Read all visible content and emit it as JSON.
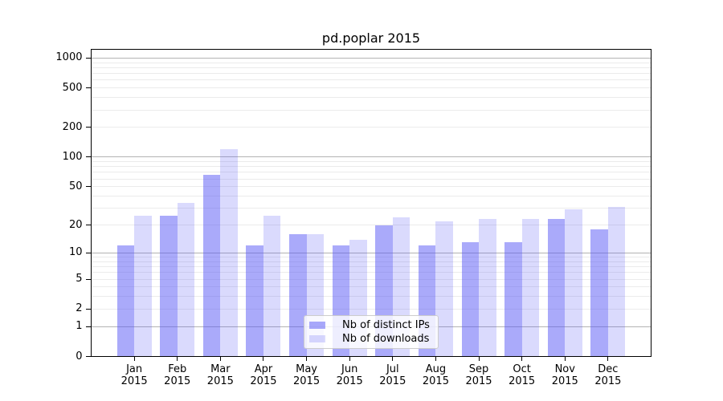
{
  "chart_data": {
    "type": "bar",
    "title": "pd.poplar 2015",
    "categories": [
      "Jan 2015",
      "Feb 2015",
      "Mar 2015",
      "Apr 2015",
      "May 2015",
      "Jun 2015",
      "Jul 2015",
      "Aug 2015",
      "Sep 2015",
      "Oct 2015",
      "Nov 2015",
      "Dec 2015"
    ],
    "series": [
      {
        "key": "distinct-ips",
        "name": "Nb of distinct IPs",
        "color": "#5555f5",
        "alpha": 0.5,
        "values": [
          12,
          25,
          66,
          12,
          16,
          12,
          20,
          12,
          13,
          13,
          23,
          18
        ]
      },
      {
        "key": "downloads",
        "name": "Nb of downloads",
        "color": "#5555f5",
        "alpha": 0.22,
        "values": [
          25,
          34,
          120,
          25,
          16,
          14,
          24,
          22,
          23,
          23,
          29,
          31
        ]
      }
    ],
    "y_ticks": [
      0,
      1,
      2,
      5,
      10,
      20,
      50,
      100,
      200,
      500,
      1000
    ],
    "ylim": [
      0,
      1200
    ],
    "yscale": "log1p",
    "xlabel": "",
    "ylabel": "",
    "grid": true,
    "grid_major_color": "#b3b3b3",
    "grid_minor_color": "#ebebeb",
    "legend_position": "lower center"
  }
}
